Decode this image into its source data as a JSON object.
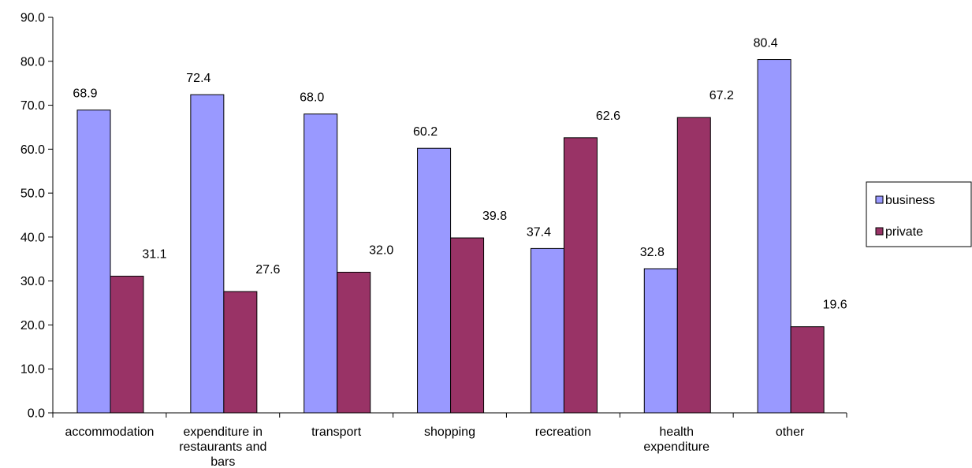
{
  "chart_data": {
    "type": "bar",
    "title": "",
    "xlabel": "",
    "ylabel": "",
    "ylim": [
      0,
      90
    ],
    "yticks": [
      "0.0",
      "10.0",
      "20.0",
      "30.0",
      "40.0",
      "50.0",
      "60.0",
      "70.0",
      "80.0",
      "90.0"
    ],
    "ytick_values": [
      0,
      10,
      20,
      30,
      40,
      50,
      60,
      70,
      80,
      90
    ],
    "grid": false,
    "legend_position": "right",
    "categories": [
      [
        "accommodation"
      ],
      [
        "expenditure in",
        "restaurants and",
        "bars"
      ],
      [
        "transport"
      ],
      [
        "shopping"
      ],
      [
        "recreation"
      ],
      [
        "health",
        "expenditure"
      ],
      [
        "other"
      ]
    ],
    "series": [
      {
        "name": "business",
        "color": "#9999ff",
        "values": [
          68.9,
          72.4,
          68.0,
          60.2,
          37.4,
          32.8,
          80.4
        ],
        "labels": [
          "68.9",
          "72.4",
          "68.0",
          "60.2",
          "37.4",
          "32.8",
          "80.4"
        ]
      },
      {
        "name": "private",
        "color": "#993366",
        "values": [
          31.1,
          27.6,
          32.0,
          39.8,
          62.6,
          67.2,
          19.6
        ],
        "labels": [
          "31.1",
          "27.6",
          "32.0",
          "39.8",
          "62.6",
          "67.2",
          "19.6"
        ]
      }
    ]
  }
}
